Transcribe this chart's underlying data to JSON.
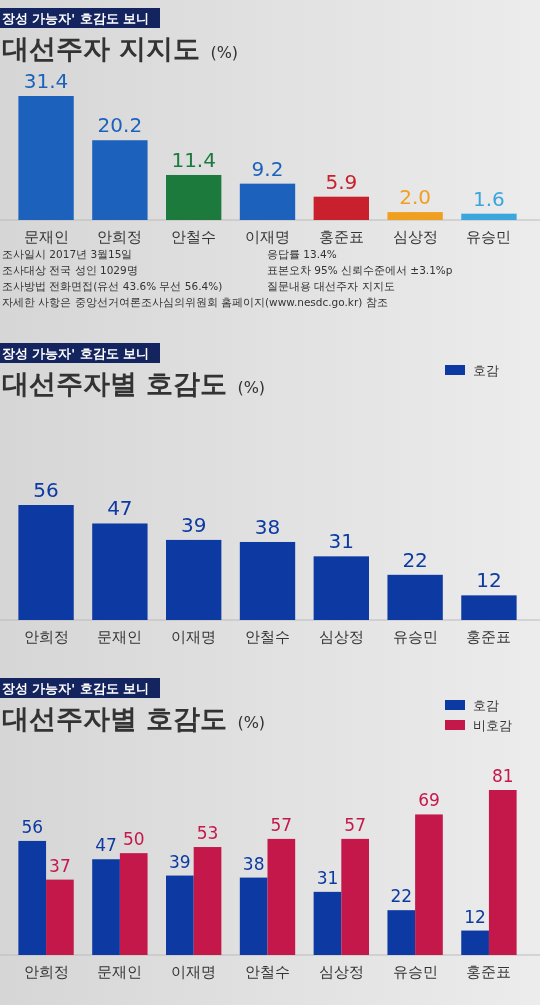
{
  "chart_data": [
    {
      "type": "bar",
      "subtitle": "장성 가능자' 호감도 보니",
      "title": "대선주자 지지도",
      "ylabel": "(%)",
      "categories": [
        "문재인",
        "안희정",
        "안철수",
        "이재명",
        "홍준표",
        "심상정",
        "유승민"
      ],
      "values": [
        31.4,
        20.2,
        11.4,
        9.2,
        5.9,
        2.0,
        1.6
      ],
      "colors": [
        "#1c62bd",
        "#1c62bd",
        "#1b7a3c",
        "#1c62bd",
        "#c8202c",
        "#f0a020",
        "#3aa6de"
      ],
      "value_labels": [
        "31.4",
        "20.2",
        "11.4",
        "9.2",
        "5.9",
        "2.0",
        "1.6"
      ],
      "legend": false,
      "annotations": [
        "조사일시 2017년 3월15일",
        "응답률 13.4%",
        "조사대상 전국 성인 1029명",
        "표본오차 95% 신뢰수준에서 ±3.1%p",
        "조사방법 전화면접(유선 43.6% 무선 56.4%)",
        "질문내용 대선주자 지지도",
        "자세한 사항은 중앙선거여론조사심의위원회 홈페이지(www.nesdc.go.kr) 참조"
      ]
    },
    {
      "type": "bar",
      "subtitle": "장성 가능자' 호감도 보니",
      "title": "대선주자별 호감도",
      "ylabel": "(%)",
      "categories": [
        "안희정",
        "문재인",
        "이재명",
        "안철수",
        "심상정",
        "유승민",
        "홍준표"
      ],
      "series": [
        {
          "name": "호감",
          "color": "#0c3aa2",
          "values": [
            56,
            47,
            39,
            38,
            31,
            22,
            12
          ]
        }
      ],
      "data_labels": true,
      "legend": "top right"
    },
    {
      "type": "bar",
      "subtitle": "장성 가능자' 호감도 보니",
      "title": "대선주자별 호감도",
      "ylabel": "(%)",
      "categories": [
        "안희정",
        "문재인",
        "이재명",
        "안철수",
        "심상정",
        "유승민",
        "홍준표"
      ],
      "series": [
        {
          "name": "호감",
          "color": "#0c3aa2",
          "values": [
            56,
            47,
            39,
            38,
            31,
            22,
            12
          ]
        },
        {
          "name": "비호감",
          "color": "#c4174a",
          "values": [
            37,
            50,
            53,
            57,
            57,
            69,
            81
          ]
        }
      ],
      "data_labels": true,
      "legend": "top right"
    }
  ]
}
